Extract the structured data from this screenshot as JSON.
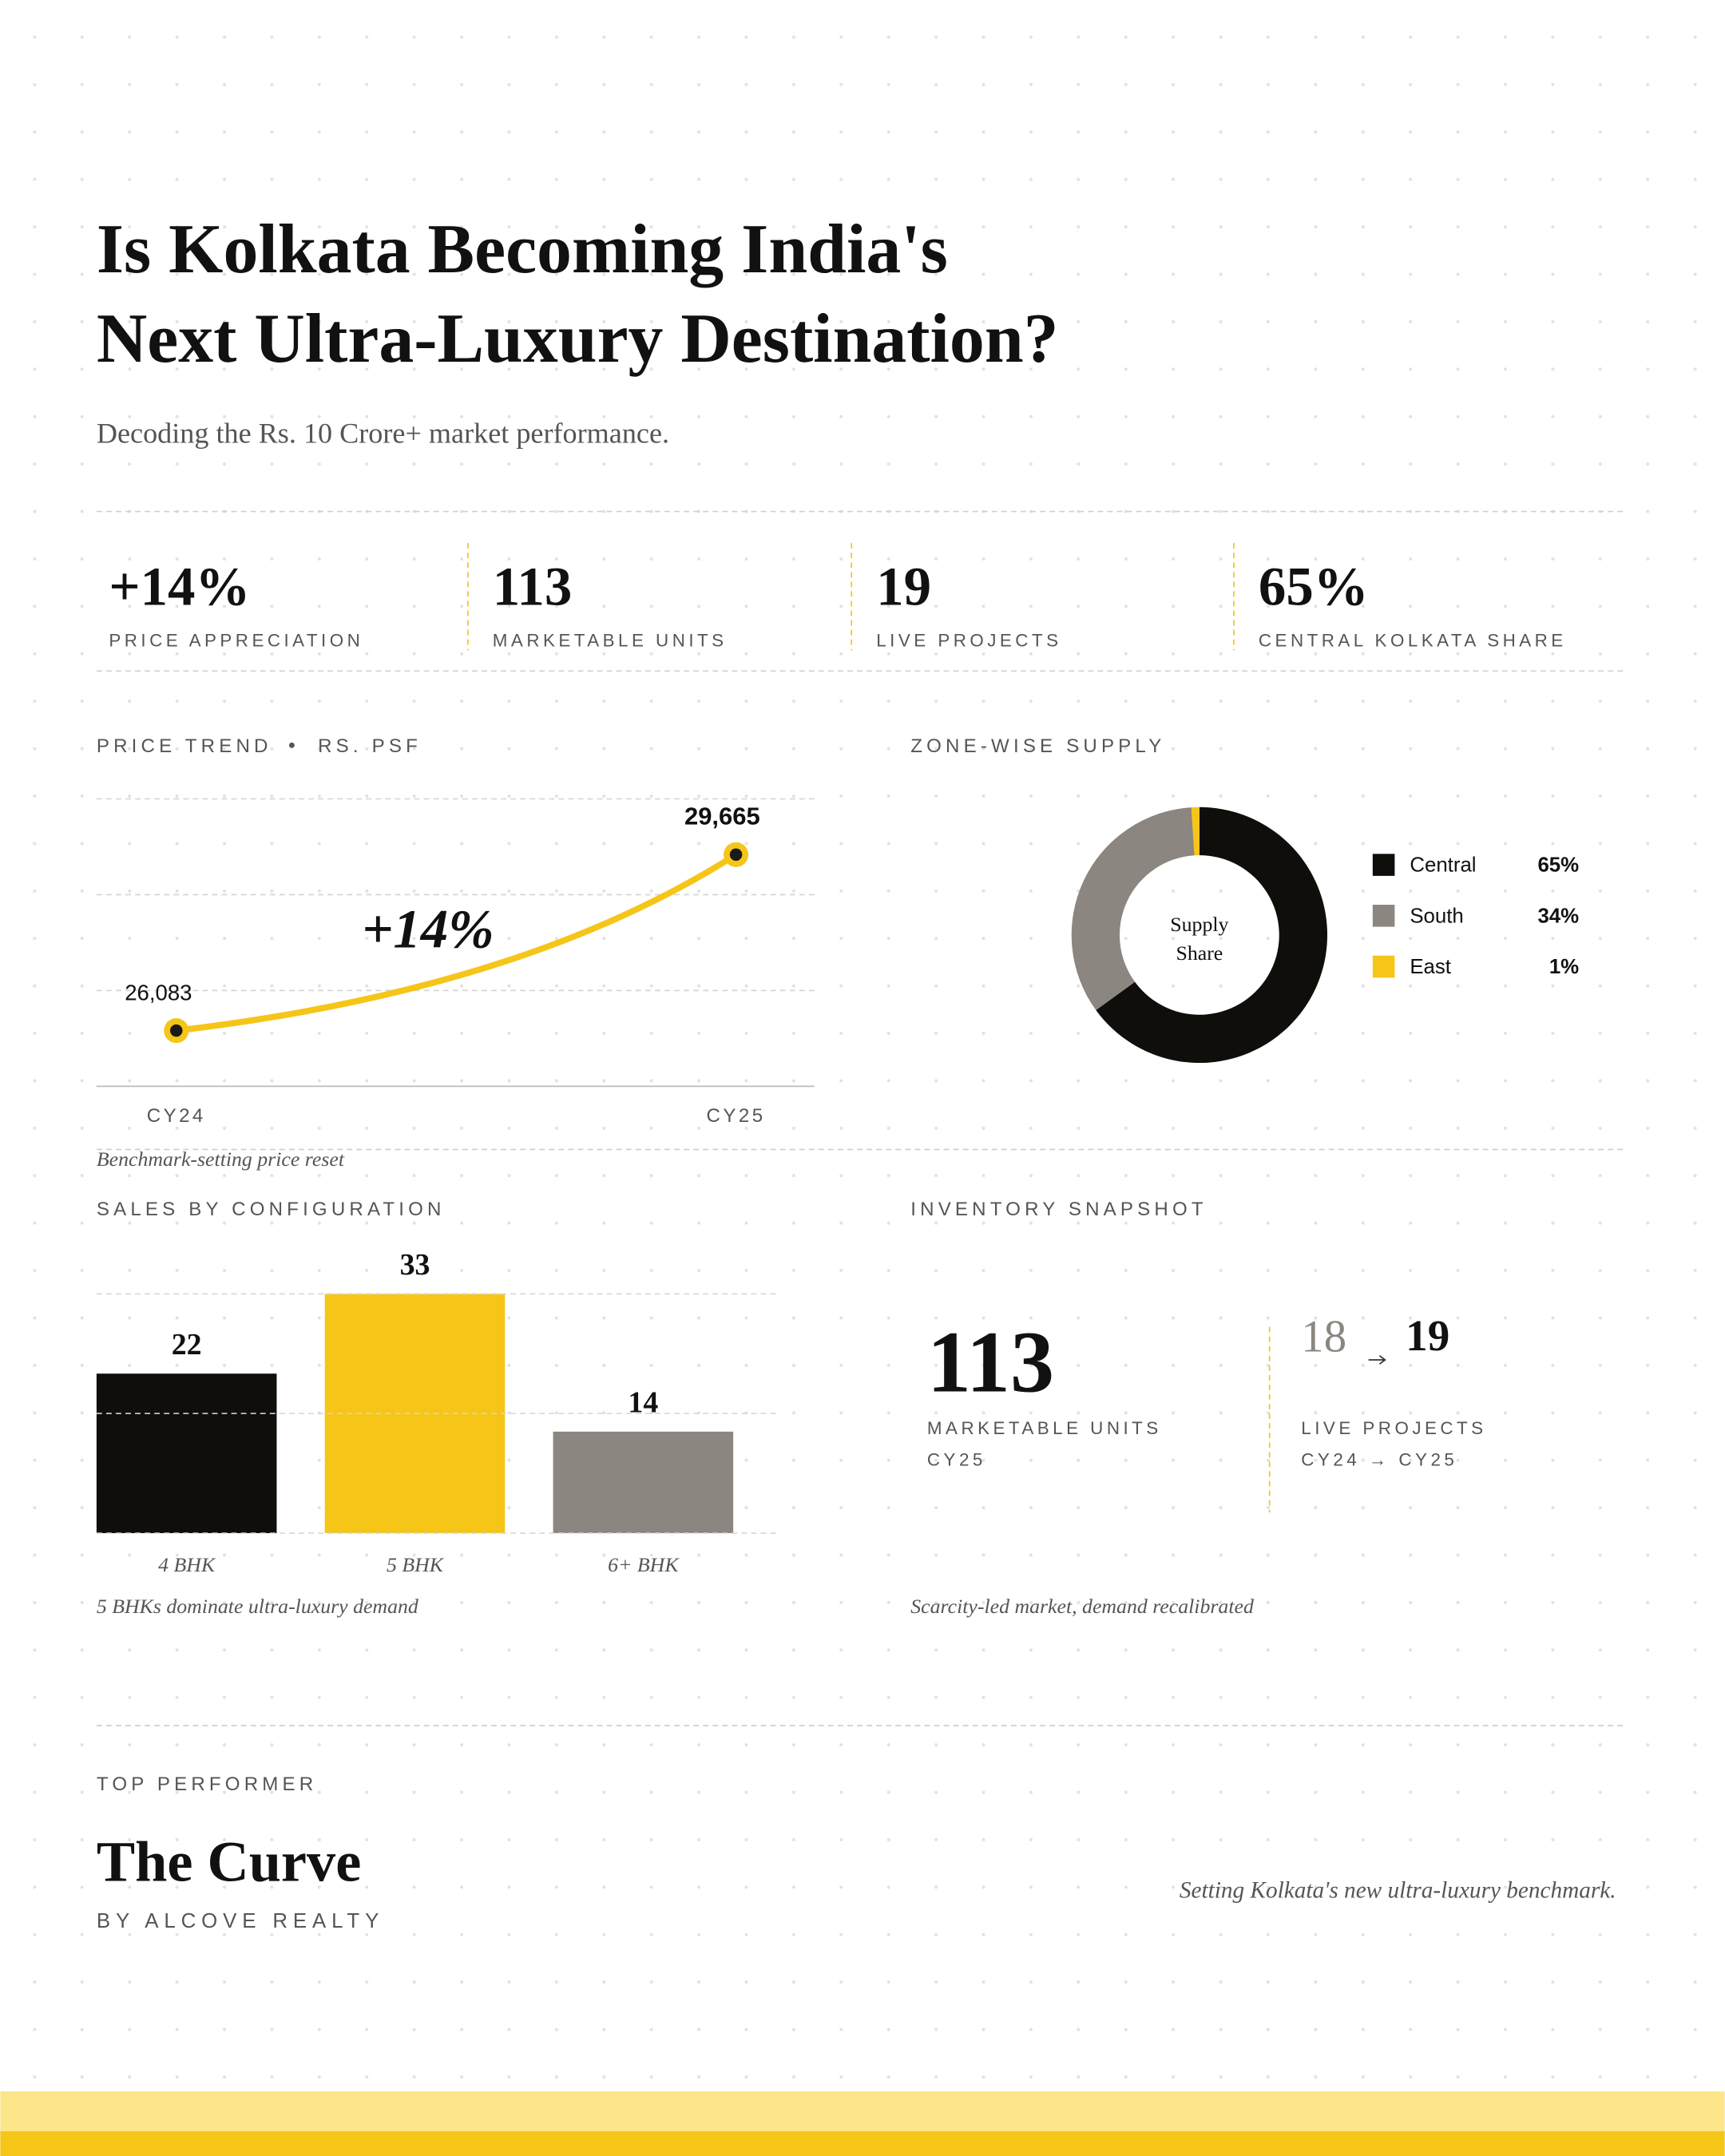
{
  "header": {
    "title_lines": [
      "Is Kolkata Becoming India's",
      "Next Ultra-Luxury Destination?"
    ],
    "subtitle": "Decoding the Rs. 10 Crore+ market performance."
  },
  "stats": [
    {
      "value": "+14%",
      "label": "PRICE APPRECIATION"
    },
    {
      "value": "113",
      "label": "MARKETABLE UNITS"
    },
    {
      "value": "19",
      "label": "LIVE PROJECTS"
    },
    {
      "value": "65%",
      "label": "CENTRAL KOLKATA SHARE"
    }
  ],
  "chart_data": [
    {
      "type": "line",
      "title": "PRICE TREND",
      "subtitle": "RS. PSF",
      "categories": [
        "CY24",
        "CY25"
      ],
      "series": [
        {
          "color": "#f5c518",
          "values": [
            26083,
            29665
          ],
          "value_labels": [
            "26,083",
            "29,665"
          ]
        }
      ],
      "ylim": [
        24950,
        30800
      ],
      "grid": true,
      "annotation": "+14%",
      "caption": "Benchmark-setting price reset"
    },
    {
      "type": "pie",
      "title": "ZONE-WISE SUPPLY",
      "categories": [
        "Central",
        "South",
        "East"
      ],
      "values": [
        65,
        34,
        1
      ],
      "value_labels": [
        "65%",
        "34%",
        "1%"
      ],
      "colors": [
        "#0f0e0b",
        "#8b8680",
        "#f5c518"
      ],
      "center_label": [
        "Supply",
        "Share"
      ],
      "legend": "right"
    },
    {
      "type": "bar",
      "title": "SALES BY CONFIGURATION",
      "categories": [
        "4 BHK",
        "5 BHK",
        "6+ BHK"
      ],
      "values": [
        22,
        33,
        14
      ],
      "colors": [
        "#0f0e0b",
        "#f5c518",
        "#8b8680"
      ],
      "ylim": [
        0,
        33
      ],
      "grid": true,
      "caption": "5 BHKs dominate ultra-luxury demand"
    }
  ],
  "inventory": {
    "title": "INVENTORY SNAPSHOT",
    "units_value": "113",
    "units_label": "MARKETABLE UNITS",
    "units_period": "CY25",
    "projects_from": "18",
    "projects_to": "19",
    "projects_label": "LIVE PROJECTS",
    "projects_period": "CY24 → CY25",
    "caption": "Scarcity-led market, demand recalibrated"
  },
  "top_performer": {
    "kicker": "TOP PERFORMER",
    "name": "The Curve",
    "developer": "BY ALCOVE REALTY",
    "tagline": "Setting Kolkata's new ultra-luxury benchmark."
  }
}
